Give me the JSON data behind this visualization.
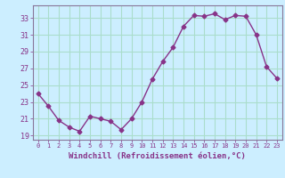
{
  "x": [
    0,
    1,
    2,
    3,
    4,
    5,
    6,
    7,
    8,
    9,
    10,
    11,
    12,
    13,
    14,
    15,
    16,
    17,
    18,
    19,
    20,
    21,
    22,
    23
  ],
  "y": [
    24.0,
    22.5,
    20.8,
    20.0,
    19.5,
    21.3,
    21.0,
    20.7,
    19.7,
    21.0,
    23.0,
    25.7,
    27.8,
    29.5,
    32.0,
    33.3,
    33.2,
    33.5,
    32.8,
    33.3,
    33.2,
    31.0,
    27.2,
    25.8
  ],
  "xlabel": "Windchill (Refroidissement éolien,°C)",
  "line_color": "#883388",
  "marker": "D",
  "marker_size": 2.5,
  "linewidth": 1.0,
  "bg_color": "#cceeff",
  "grid_color": "#aaddcc",
  "spine_color": "#887799",
  "tick_color": "#883388",
  "label_color": "#883388",
  "xlim": [
    -0.5,
    23.5
  ],
  "ylim": [
    18.5,
    34.5
  ],
  "yticks": [
    19,
    21,
    23,
    25,
    27,
    29,
    31,
    33
  ],
  "xticks": [
    0,
    1,
    2,
    3,
    4,
    5,
    6,
    7,
    8,
    9,
    10,
    11,
    12,
    13,
    14,
    15,
    16,
    17,
    18,
    19,
    20,
    21,
    22,
    23
  ]
}
